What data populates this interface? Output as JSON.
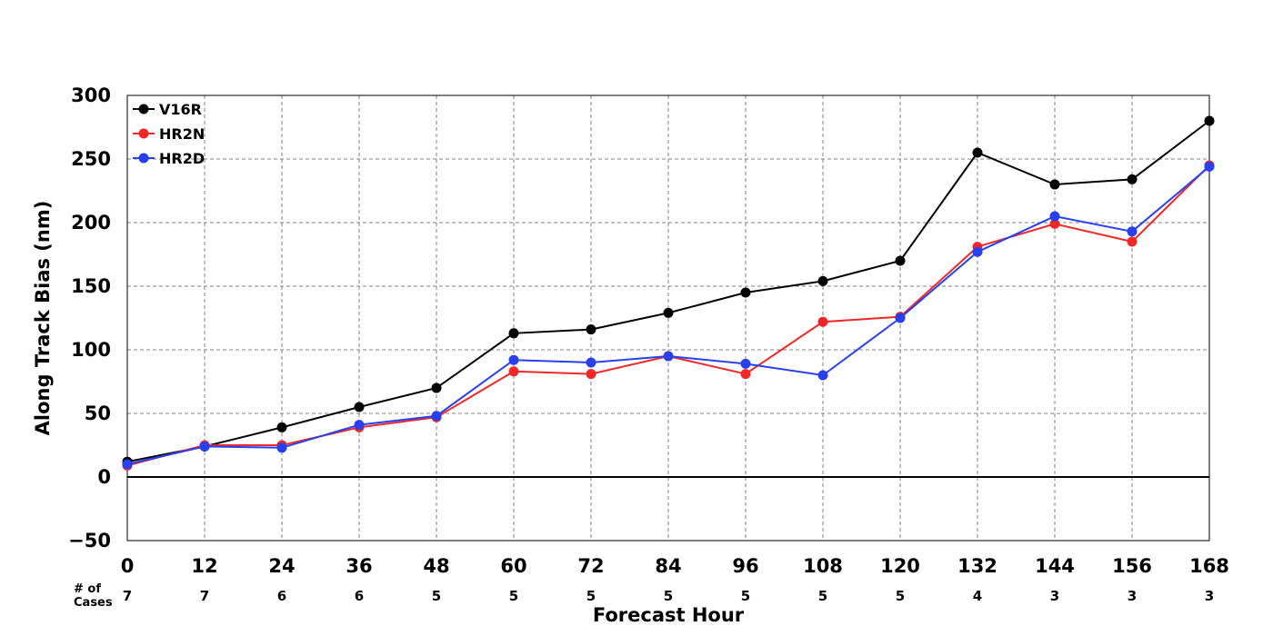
{
  "chart_data": {
    "type": "line",
    "xlabel": "Forecast Hour",
    "ylabel": "Along Track Bias (nm)",
    "x": [
      0,
      12,
      24,
      36,
      48,
      60,
      72,
      84,
      96,
      108,
      120,
      132,
      144,
      156,
      168
    ],
    "xlim": [
      0,
      168
    ],
    "ylim": [
      -50,
      300
    ],
    "yticks": [
      -50,
      0,
      50,
      100,
      150,
      200,
      250,
      300
    ],
    "ytick_labels": [
      "−50",
      "0",
      "50",
      "100",
      "150",
      "200",
      "250",
      "300"
    ],
    "grid": true,
    "zero_line": true,
    "legend_position": "top-left",
    "series": [
      {
        "name": "V16R",
        "color": "#000000",
        "values": [
          12,
          24,
          39,
          55,
          70,
          113,
          116,
          129,
          145,
          154,
          170,
          255,
          230,
          234,
          280
        ]
      },
      {
        "name": "HR2N",
        "color": "#f02828",
        "values": [
          9,
          25,
          25,
          39,
          47,
          83,
          81,
          95,
          81,
          122,
          126,
          181,
          199,
          185,
          245
        ]
      },
      {
        "name": "HR2D",
        "color": "#2840f0",
        "values": [
          10,
          24,
          23,
          41,
          48,
          92,
          90,
          95,
          89,
          80,
          125,
          177,
          205,
          193,
          244
        ]
      }
    ],
    "cases_label": "# of\nCases",
    "cases": [
      7,
      7,
      6,
      6,
      5,
      5,
      5,
      5,
      5,
      5,
      5,
      4,
      3,
      3,
      3
    ]
  }
}
